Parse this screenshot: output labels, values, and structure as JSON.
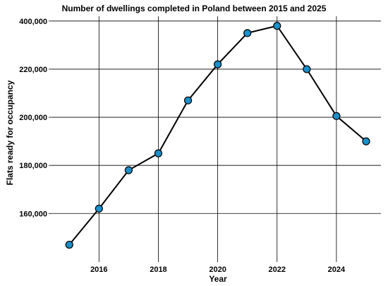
{
  "chart_data": {
    "type": "line",
    "title": "Number of dwellings completed in Poland between 2015 and 2025",
    "xlabel": "Year",
    "ylabel": "Flats ready for occupancy",
    "x": [
      2015,
      2016,
      2017,
      2018,
      2019,
      2020,
      2021,
      2022,
      2023,
      2024,
      2025
    ],
    "x_ticks": [
      "2016",
      "2018",
      "2020",
      "2022",
      "2024"
    ],
    "y_tick_labels": [
      "160,000",
      "180,000",
      "200,000",
      "220,000",
      "400,000"
    ],
    "series": [
      {
        "values": [
          147000,
          162000,
          178000,
          185000,
          207000,
          222000,
          235000,
          238000,
          220000,
          200500,
          190000
        ],
        "color": "#1a8fc9"
      }
    ],
    "grid": true,
    "legend": "none"
  }
}
